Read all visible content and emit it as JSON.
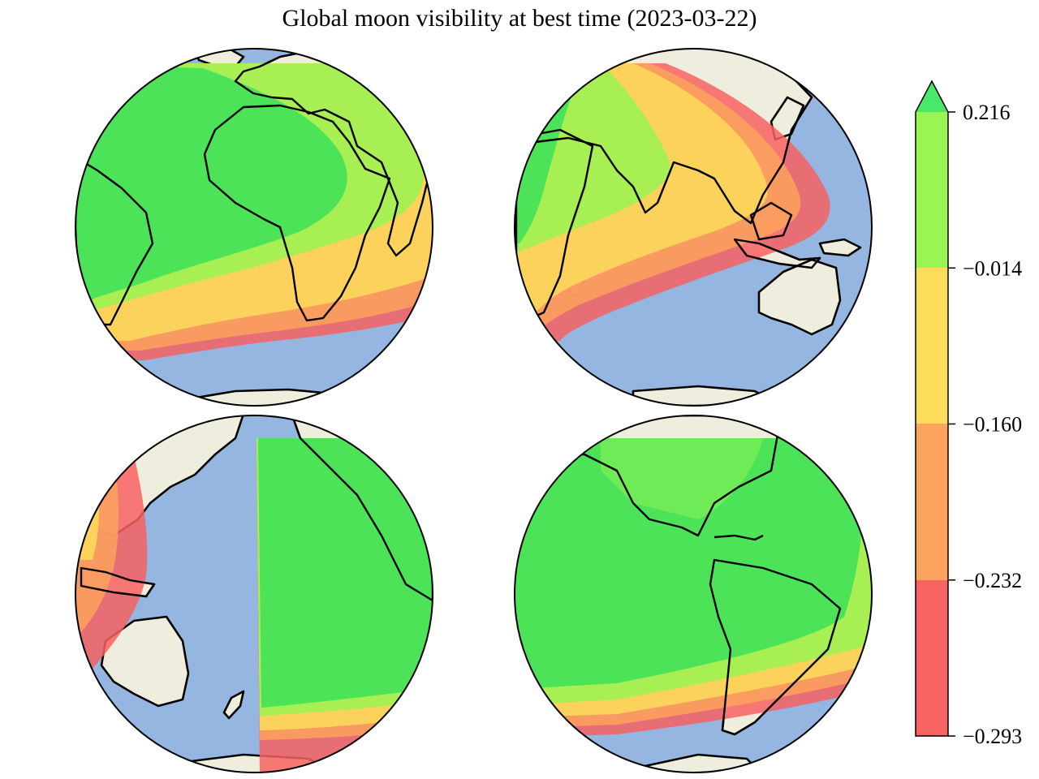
{
  "title": "Global moon visibility at best time (2023-03-22)",
  "colorbar": {
    "tick_labels": [
      "0.216",
      "−0.014",
      "−0.160",
      "−0.232",
      "−0.293"
    ],
    "levels": [
      0.216,
      -0.014,
      -0.16,
      -0.232,
      -0.293
    ],
    "extend": "max"
  },
  "colors": {
    "ocean": "#94b6e0",
    "land": "#efedde",
    "band_dark_green": "#3ce05a",
    "band_light_green": "#98f552",
    "band_yellow": "#fcdc5a",
    "band_orange": "#fca35e",
    "band_red": "#f76262",
    "extend_green": "#4ae86a"
  },
  "globes": [
    {
      "id": "globe-africa-europe"
    },
    {
      "id": "globe-asia-australia"
    },
    {
      "id": "globe-pacific"
    },
    {
      "id": "globe-americas"
    }
  ]
}
